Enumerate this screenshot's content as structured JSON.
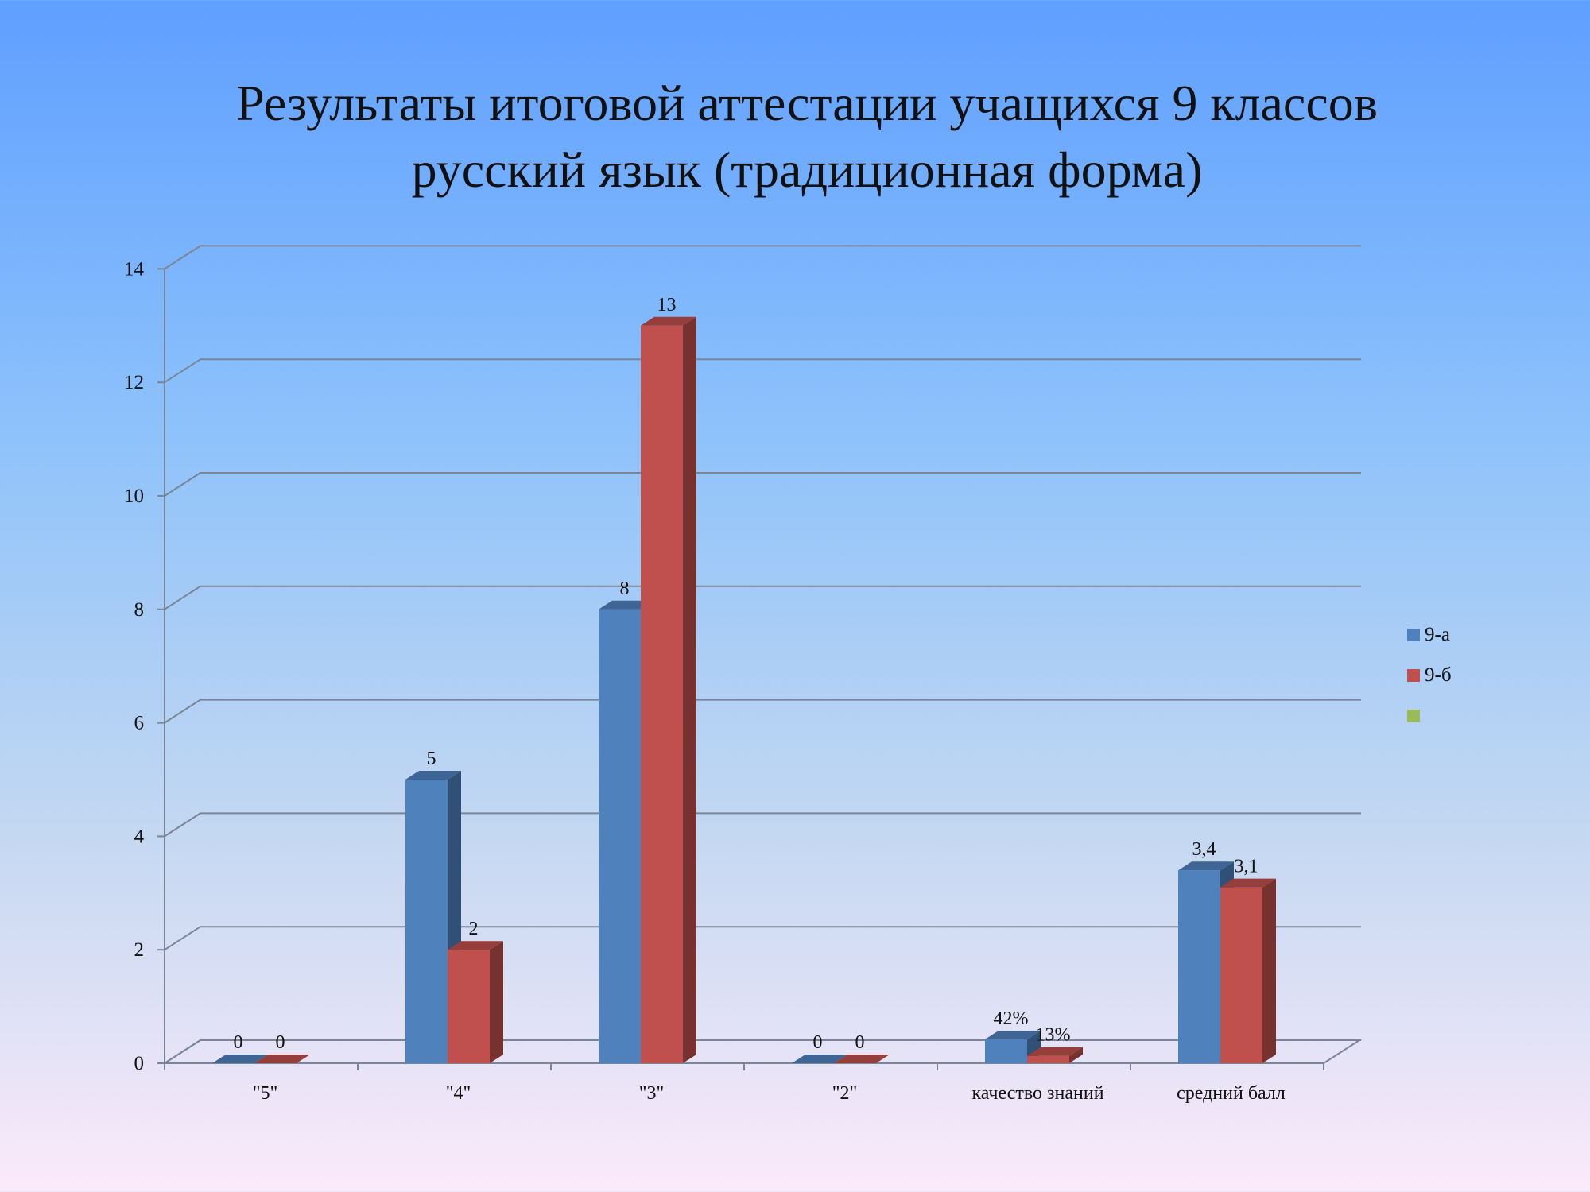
{
  "title": {
    "line1": "Результаты итоговой аттестации учащихся 9 классов",
    "line2": "русский язык (традиционная форма)"
  },
  "colors": {
    "series_a": "#4f81bd",
    "series_b": "#c0504d",
    "series_c": "#9bbb59",
    "grid": "#7a8597"
  },
  "chart_data": {
    "type": "bar",
    "categories": [
      "\"5\"",
      "\"4\"",
      "\"3\"",
      "\"2\"",
      "качество знаний",
      "средний балл"
    ],
    "series": [
      {
        "name": "9-а",
        "values": [
          0,
          5,
          8,
          0,
          0.42,
          3.4
        ],
        "labels": [
          "0",
          "5",
          "8",
          "0",
          "42%",
          "3,4"
        ]
      },
      {
        "name": "9-б",
        "values": [
          0,
          2,
          13,
          0,
          0.13,
          3.1
        ],
        "labels": [
          "0",
          "2",
          "13",
          "0",
          "13%",
          "3,1"
        ]
      },
      {
        "name": "",
        "values": [
          null,
          null,
          null,
          null,
          null,
          null
        ],
        "labels": [
          "",
          "",
          "",
          "",
          "",
          ""
        ]
      }
    ],
    "y_ticks": [
      "0",
      "2",
      "4",
      "6",
      "8",
      "10",
      "12",
      "14"
    ],
    "ylim": [
      0,
      14
    ],
    "grid": true,
    "legend_position": "right",
    "style": "3d-clustered-column"
  }
}
